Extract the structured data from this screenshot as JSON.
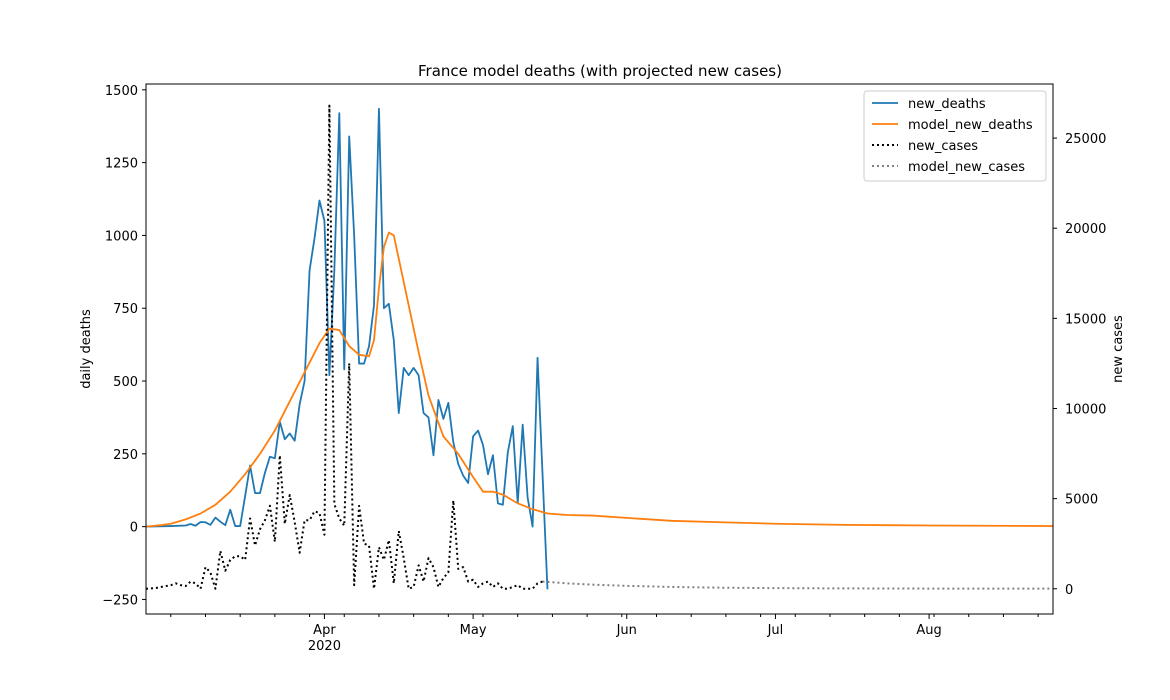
{
  "chart_data": {
    "type": "line",
    "title": "France model deaths (with projected new cases)",
    "ylabel": "daily deaths",
    "y2label": "new cases",
    "ylim": [
      -300,
      1520
    ],
    "y2lim": [
      -1400,
      28000
    ],
    "xlim": [
      "2020-02-25",
      "2020-08-26"
    ],
    "x_ticks": [
      {
        "date": "2020-04-01",
        "label": "Apr",
        "sublabel": "2020"
      },
      {
        "date": "2020-05-01",
        "label": "May",
        "sublabel": ""
      },
      {
        "date": "2020-06-01",
        "label": "Jun",
        "sublabel": ""
      },
      {
        "date": "2020-07-01",
        "label": "Jul",
        "sublabel": ""
      },
      {
        "date": "2020-08-01",
        "label": "Aug",
        "sublabel": ""
      }
    ],
    "y_ticks": [
      -250,
      0,
      250,
      500,
      750,
      1000,
      1250,
      1500
    ],
    "y2_ticks": [
      0,
      5000,
      10000,
      15000,
      20000,
      25000
    ],
    "legend_position": "upper right",
    "series": [
      {
        "name": "new_deaths",
        "axis": "left",
        "color": "#1f77b4",
        "style": "solid",
        "points": [
          [
            "2020-02-25",
            0
          ],
          [
            "2020-03-01",
            2
          ],
          [
            "2020-03-04",
            4
          ],
          [
            "2020-03-05",
            9
          ],
          [
            "2020-03-06",
            3
          ],
          [
            "2020-03-07",
            16
          ],
          [
            "2020-03-08",
            15
          ],
          [
            "2020-03-09",
            6
          ],
          [
            "2020-03-10",
            31
          ],
          [
            "2020-03-11",
            17
          ],
          [
            "2020-03-12",
            5
          ],
          [
            "2020-03-13",
            58
          ],
          [
            "2020-03-14",
            2
          ],
          [
            "2020-03-15",
            2
          ],
          [
            "2020-03-16",
            105
          ],
          [
            "2020-03-17",
            210
          ],
          [
            "2020-03-18",
            115
          ],
          [
            "2020-03-19",
            115
          ],
          [
            "2020-03-20",
            185
          ],
          [
            "2020-03-21",
            240
          ],
          [
            "2020-03-22",
            235
          ],
          [
            "2020-03-23",
            360
          ],
          [
            "2020-03-24",
            300
          ],
          [
            "2020-03-25",
            320
          ],
          [
            "2020-03-26",
            295
          ],
          [
            "2020-03-27",
            420
          ],
          [
            "2020-03-28",
            500
          ],
          [
            "2020-03-29",
            880
          ],
          [
            "2020-03-30",
            990
          ],
          [
            "2020-03-31",
            1120
          ],
          [
            "2020-04-01",
            1050
          ],
          [
            "2020-04-02",
            520
          ],
          [
            "2020-04-03",
            880
          ],
          [
            "2020-04-04",
            1420
          ],
          [
            "2020-04-05",
            540
          ],
          [
            "2020-04-06",
            1340
          ],
          [
            "2020-04-07",
            1000
          ],
          [
            "2020-04-08",
            560
          ],
          [
            "2020-04-09",
            560
          ],
          [
            "2020-04-10",
            620
          ],
          [
            "2020-04-11",
            760
          ],
          [
            "2020-04-12",
            1435
          ],
          [
            "2020-04-13",
            750
          ],
          [
            "2020-04-14",
            765
          ],
          [
            "2020-04-15",
            640
          ],
          [
            "2020-04-16",
            390
          ],
          [
            "2020-04-17",
            545
          ],
          [
            "2020-04-18",
            520
          ],
          [
            "2020-04-19",
            545
          ],
          [
            "2020-04-20",
            520
          ],
          [
            "2020-04-21",
            390
          ],
          [
            "2020-04-22",
            375
          ],
          [
            "2020-04-23",
            245
          ],
          [
            "2020-04-24",
            435
          ],
          [
            "2020-04-25",
            370
          ],
          [
            "2020-04-26",
            425
          ],
          [
            "2020-04-27",
            290
          ],
          [
            "2020-04-28",
            215
          ],
          [
            "2020-04-29",
            175
          ],
          [
            "2020-04-30",
            150
          ],
          [
            "2020-05-01",
            310
          ],
          [
            "2020-05-02",
            330
          ],
          [
            "2020-05-03",
            280
          ],
          [
            "2020-05-04",
            180
          ],
          [
            "2020-05-05",
            245
          ],
          [
            "2020-05-06",
            80
          ],
          [
            "2020-05-07",
            75
          ],
          [
            "2020-05-08",
            255
          ],
          [
            "2020-05-09",
            345
          ],
          [
            "2020-05-10",
            80
          ],
          [
            "2020-05-11",
            350
          ],
          [
            "2020-05-12",
            100
          ],
          [
            "2020-05-13",
            0
          ],
          [
            "2020-05-14",
            580
          ],
          [
            "2020-05-16",
            -215
          ]
        ]
      },
      {
        "name": "model_new_deaths",
        "axis": "left",
        "color": "#ff7f0e",
        "style": "solid",
        "points": [
          [
            "2020-02-25",
            0
          ],
          [
            "2020-02-28",
            5
          ],
          [
            "2020-03-01",
            10
          ],
          [
            "2020-03-04",
            25
          ],
          [
            "2020-03-07",
            45
          ],
          [
            "2020-03-10",
            75
          ],
          [
            "2020-03-13",
            120
          ],
          [
            "2020-03-16",
            180
          ],
          [
            "2020-03-19",
            250
          ],
          [
            "2020-03-22",
            330
          ],
          [
            "2020-03-25",
            430
          ],
          [
            "2020-03-28",
            530
          ],
          [
            "2020-03-31",
            630
          ],
          [
            "2020-04-02",
            680
          ],
          [
            "2020-04-04",
            675
          ],
          [
            "2020-04-06",
            620
          ],
          [
            "2020-04-08",
            590
          ],
          [
            "2020-04-10",
            585
          ],
          [
            "2020-04-11",
            640
          ],
          [
            "2020-04-12",
            820
          ],
          [
            "2020-04-13",
            960
          ],
          [
            "2020-04-14",
            1010
          ],
          [
            "2020-04-15",
            1000
          ],
          [
            "2020-04-16",
            920
          ],
          [
            "2020-04-18",
            760
          ],
          [
            "2020-04-20",
            600
          ],
          [
            "2020-04-22",
            450
          ],
          [
            "2020-04-25",
            310
          ],
          [
            "2020-04-28",
            250
          ],
          [
            "2020-05-01",
            170
          ],
          [
            "2020-05-03",
            120
          ],
          [
            "2020-05-05",
            120
          ],
          [
            "2020-05-07",
            110
          ],
          [
            "2020-05-10",
            80
          ],
          [
            "2020-05-13",
            60
          ],
          [
            "2020-05-16",
            45
          ],
          [
            "2020-05-20",
            40
          ],
          [
            "2020-05-25",
            38
          ],
          [
            "2020-06-01",
            30
          ],
          [
            "2020-06-10",
            20
          ],
          [
            "2020-06-20",
            15
          ],
          [
            "2020-07-01",
            10
          ],
          [
            "2020-07-15",
            6
          ],
          [
            "2020-08-01",
            4
          ],
          [
            "2020-08-26",
            2
          ]
        ]
      },
      {
        "name": "new_cases",
        "axis": "right",
        "color": "#000000",
        "style": "dotted",
        "points": [
          [
            "2020-02-25",
            0
          ],
          [
            "2020-02-27",
            40
          ],
          [
            "2020-02-28",
            100
          ],
          [
            "2020-03-01",
            200
          ],
          [
            "2020-03-02",
            300
          ],
          [
            "2020-03-03",
            200
          ],
          [
            "2020-03-04",
            150
          ],
          [
            "2020-03-05",
            400
          ],
          [
            "2020-03-06",
            300
          ],
          [
            "2020-03-07",
            0
          ],
          [
            "2020-03-08",
            1200
          ],
          [
            "2020-03-09",
            900
          ],
          [
            "2020-03-10",
            0
          ],
          [
            "2020-03-11",
            2100
          ],
          [
            "2020-03-12",
            1000
          ],
          [
            "2020-03-13",
            1600
          ],
          [
            "2020-03-14",
            1800
          ],
          [
            "2020-03-15",
            1800
          ],
          [
            "2020-03-16",
            1600
          ],
          [
            "2020-03-17",
            3900
          ],
          [
            "2020-03-18",
            2400
          ],
          [
            "2020-03-19",
            3300
          ],
          [
            "2020-03-20",
            3800
          ],
          [
            "2020-03-21",
            4600
          ],
          [
            "2020-03-22",
            2600
          ],
          [
            "2020-03-23",
            7400
          ],
          [
            "2020-03-24",
            3600
          ],
          [
            "2020-03-25",
            5200
          ],
          [
            "2020-03-26",
            3700
          ],
          [
            "2020-03-27",
            2000
          ],
          [
            "2020-03-28",
            3800
          ],
          [
            "2020-03-29",
            3800
          ],
          [
            "2020-03-30",
            4300
          ],
          [
            "2020-03-31",
            4200
          ],
          [
            "2020-04-01",
            3000
          ],
          [
            "2020-04-02",
            26800
          ],
          [
            "2020-04-03",
            4700
          ],
          [
            "2020-04-04",
            3900
          ],
          [
            "2020-04-05",
            3500
          ],
          [
            "2020-04-06",
            12500
          ],
          [
            "2020-04-07",
            200
          ],
          [
            "2020-04-08",
            4600
          ],
          [
            "2020-04-09",
            2500
          ],
          [
            "2020-04-10",
            2400
          ],
          [
            "2020-04-11",
            0
          ],
          [
            "2020-04-12",
            2300
          ],
          [
            "2020-04-13",
            1600
          ],
          [
            "2020-04-14",
            2700
          ],
          [
            "2020-04-15",
            300
          ],
          [
            "2020-04-16",
            3200
          ],
          [
            "2020-04-17",
            1700
          ],
          [
            "2020-04-18",
            0
          ],
          [
            "2020-04-19",
            100
          ],
          [
            "2020-04-20",
            1300
          ],
          [
            "2020-04-21",
            400
          ],
          [
            "2020-04-22",
            1700
          ],
          [
            "2020-04-23",
            1200
          ],
          [
            "2020-04-24",
            100
          ],
          [
            "2020-04-25",
            600
          ],
          [
            "2020-04-26",
            900
          ],
          [
            "2020-04-27",
            4900
          ],
          [
            "2020-04-28",
            1100
          ],
          [
            "2020-04-29",
            1200
          ],
          [
            "2020-04-30",
            400
          ],
          [
            "2020-05-01",
            500
          ],
          [
            "2020-05-02",
            100
          ],
          [
            "2020-05-03",
            300
          ],
          [
            "2020-05-04",
            400
          ],
          [
            "2020-05-05",
            100
          ],
          [
            "2020-05-06",
            300
          ],
          [
            "2020-05-07",
            0
          ],
          [
            "2020-05-08",
            0
          ],
          [
            "2020-05-09",
            100
          ],
          [
            "2020-05-10",
            200
          ],
          [
            "2020-05-11",
            0
          ],
          [
            "2020-05-12",
            0
          ],
          [
            "2020-05-13",
            0
          ],
          [
            "2020-05-14",
            300
          ],
          [
            "2020-05-15",
            400
          ]
        ]
      },
      {
        "name": "model_new_cases",
        "axis": "right",
        "color": "#808080",
        "style": "dotted",
        "points": [
          [
            "2020-05-15",
            400
          ],
          [
            "2020-05-20",
            300
          ],
          [
            "2020-05-25",
            230
          ],
          [
            "2020-06-01",
            160
          ],
          [
            "2020-06-10",
            100
          ],
          [
            "2020-06-20",
            60
          ],
          [
            "2020-07-01",
            35
          ],
          [
            "2020-07-15",
            20
          ],
          [
            "2020-08-01",
            10
          ],
          [
            "2020-08-26",
            5
          ]
        ]
      }
    ]
  }
}
